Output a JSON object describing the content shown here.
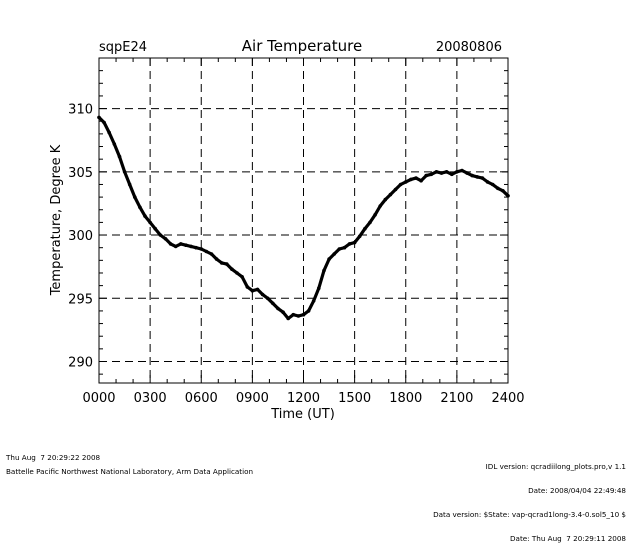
{
  "header": {
    "left": "sqpE24",
    "title": "Air Temperature",
    "right": "20080806"
  },
  "footer": {
    "left_line1": "Thu Aug  7 20:29:22 2008",
    "left_line2": "Battelle Pacific Northwest National Laboratory, Arm Data Application",
    "right_lines": [
      "IDL version: qcradiilong_plots.pro,v 1.1",
      "Date: 2008/04/04 22:49:48",
      "Data version: $State: vap-qcrad1long-3.4-0.sol5_10 $",
      "Date: Thu Aug  7 20:29:11 2008"
    ]
  },
  "chart_data": {
    "type": "line",
    "title": "Air Temperature",
    "xlabel": "Time (UT)",
    "ylabel": "Temperature, Degree K",
    "xlim": [
      0,
      2400
    ],
    "ylim": [
      288.3,
      314
    ],
    "x_ticks": [
      "0000",
      "0300",
      "0600",
      "0900",
      "1200",
      "1500",
      "1800",
      "2100",
      "2400"
    ],
    "x_tick_values": [
      0,
      300,
      600,
      900,
      1200,
      1500,
      1800,
      2100,
      2400
    ],
    "y_ticks": [
      "290",
      "295",
      "300",
      "305",
      "310"
    ],
    "y_tick_values": [
      290,
      295,
      300,
      305,
      310
    ],
    "grid": "dashed",
    "series": [
      {
        "color": "#000000",
        "x": [
          0,
          30,
          60,
          90,
          120,
          150,
          180,
          210,
          240,
          270,
          300,
          330,
          360,
          390,
          420,
          450,
          480,
          510,
          540,
          570,
          600,
          630,
          660,
          690,
          720,
          750,
          780,
          810,
          840,
          870,
          900,
          930,
          960,
          990,
          1020,
          1050,
          1080,
          1110,
          1140,
          1170,
          1200,
          1230,
          1260,
          1290,
          1320,
          1350,
          1380,
          1410,
          1440,
          1470,
          1500,
          1530,
          1560,
          1590,
          1620,
          1650,
          1680,
          1710,
          1740,
          1770,
          1800,
          1830,
          1860,
          1890,
          1920,
          1950,
          1980,
          2010,
          2040,
          2070,
          2100,
          2130,
          2160,
          2190,
          2220,
          2250,
          2280,
          2310,
          2340,
          2370,
          2400
        ],
        "y": [
          309.3,
          308.9,
          308.1,
          307.2,
          306.2,
          305.0,
          304.0,
          303.0,
          302.2,
          301.5,
          301.0,
          300.5,
          300.0,
          299.7,
          299.3,
          299.1,
          299.3,
          299.2,
          299.1,
          299.0,
          298.9,
          298.7,
          298.5,
          298.1,
          297.8,
          297.7,
          297.3,
          297.0,
          296.7,
          295.9,
          295.6,
          295.7,
          295.3,
          295.0,
          294.6,
          294.2,
          293.9,
          293.4,
          293.7,
          293.6,
          293.7,
          294.0,
          294.8,
          295.8,
          297.2,
          298.1,
          298.5,
          298.9,
          299.0,
          299.3,
          299.4,
          299.9,
          300.5,
          301.0,
          301.6,
          302.3,
          302.8,
          303.2,
          303.6,
          304.0,
          304.2,
          304.4,
          304.5,
          304.3,
          304.7,
          304.8,
          305.0,
          304.9,
          305.0,
          304.8,
          305.0,
          305.1,
          304.9,
          304.7,
          304.6,
          304.5,
          304.2,
          304.0,
          303.7,
          303.5,
          303.1
        ]
      }
    ]
  }
}
